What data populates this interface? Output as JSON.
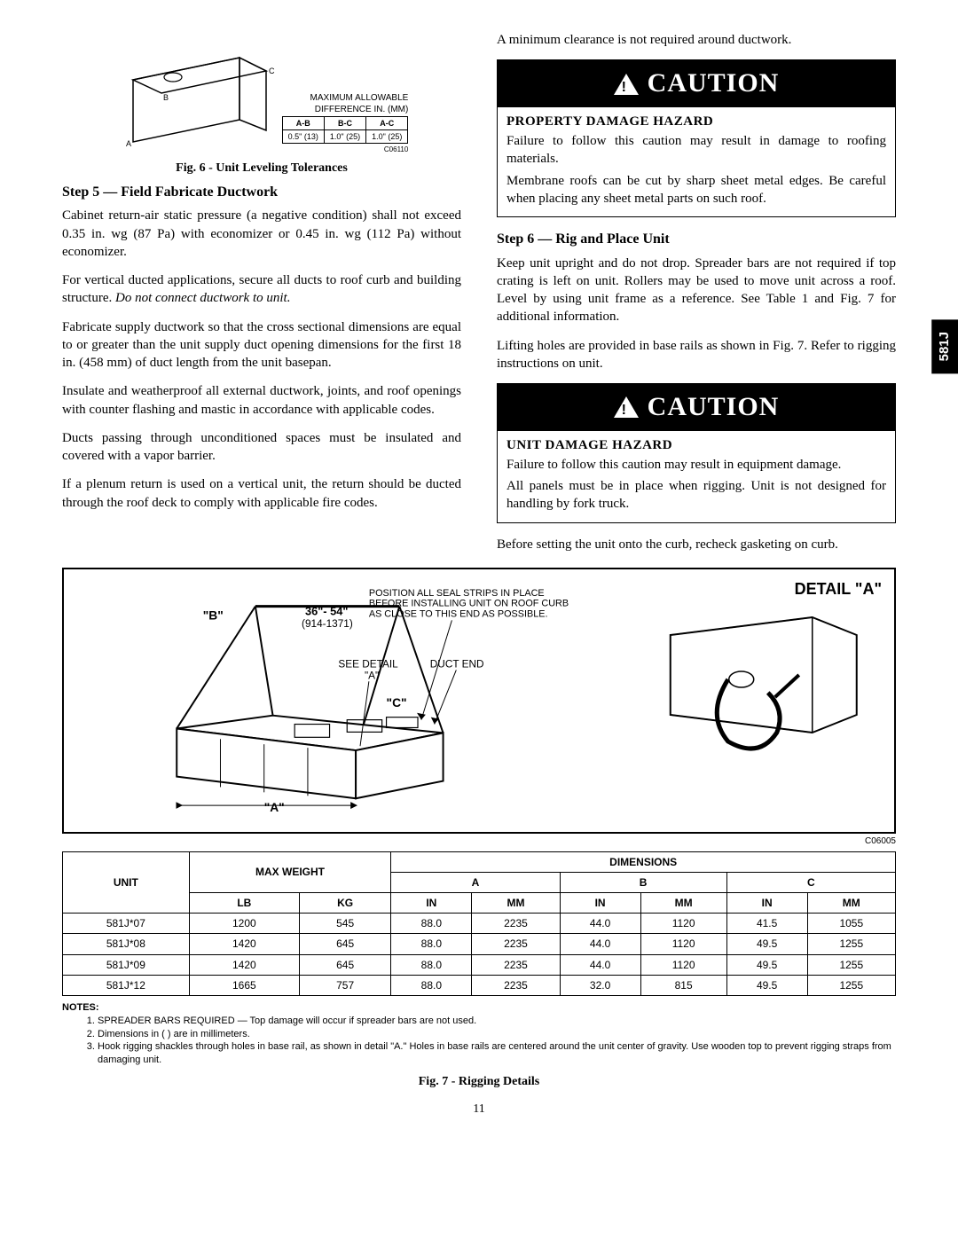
{
  "side_tab": "581J",
  "page_number": "11",
  "fig6": {
    "label_allowable": "MAXIMUM ALLOWABLE",
    "label_difference": "DIFFERENCE IN. (MM)",
    "code": "C06110",
    "caption": "Fig. 6 - Unit Leveling Tolerances",
    "cols": [
      "A-B",
      "B-C",
      "A-C"
    ],
    "vals": [
      "0.5\" (13)",
      "1.0\" (25)",
      "1.0\" (25)"
    ],
    "corner_a": "A",
    "corner_b": "B",
    "corner_c": "C"
  },
  "left": {
    "step5": "Step 5 — Field Fabricate Ductwork",
    "p1": "Cabinet return-air static pressure (a negative condition) shall not exceed 0.35 in. wg (87 Pa) with economizer or 0.45 in. wg (112 Pa) without economizer.",
    "p2a": "For vertical ducted applications, secure all ducts to roof curb and building structure. ",
    "p2b_italic": "Do not connect ductwork to unit.",
    "p3": "Fabricate supply ductwork so that the cross sectional dimensions are equal to or greater than the unit supply duct opening dimensions for the first 18 in. (458 mm) of duct length from the unit basepan.",
    "p4": "Insulate and weatherproof all external ductwork, joints, and roof openings with counter flashing and mastic in accordance with applicable codes.",
    "p5": "Ducts passing through unconditioned spaces must be insulated and covered with a vapor barrier.",
    "p6": "If a plenum return is used on a vertical unit, the return should be ducted through the roof deck to comply with applicable fire codes."
  },
  "right": {
    "p_top": "A minimum clearance is not required around ductwork.",
    "caution1": {
      "label": "CAUTION",
      "heading": "PROPERTY DAMAGE HAZARD",
      "l1": "Failure to follow this caution may result in damage to roofing materials.",
      "l2": "Membrane roofs can be cut by sharp sheet metal edges. Be careful when placing any sheet metal parts on such roof."
    },
    "step6": "Step 6 — Rig and Place Unit",
    "p_rig1": "Keep unit upright and do not drop. Spreader bars are not required if top crating is left on unit. Rollers may be used to move unit across a roof. Level by using unit frame as a reference. See Table 1 and Fig. 7 for additional information.",
    "p_rig2": "Lifting holes are provided in base rails as shown in Fig. 7. Refer to rigging instructions on unit.",
    "caution2": {
      "label": "CAUTION",
      "heading": "UNIT DAMAGE HAZARD",
      "l1": "Failure to follow this caution may result in equipment damage.",
      "l2": "All panels must be in place when rigging. Unit is not designed for handling by fork truck."
    },
    "p_before": "Before setting the unit onto the curb, recheck gasketing on curb."
  },
  "fig7": {
    "caption": "Fig. 7 - Rigging Details",
    "code": "C06005",
    "detail_a_title": "DETAIL \"A\"",
    "label_B": "\"B\"",
    "label_range": "36\"- 54\"",
    "label_range2": "(914-1371)",
    "label_pos1": "POSITION ALL SEAL STRIPS IN PLACE",
    "label_pos2": "BEFORE INSTALLING UNIT ON ROOF CURB",
    "label_pos3": "AS CLOSE TO THIS END AS POSSIBLE.",
    "label_seedetail": "SEE DETAIL",
    "label_seedetail2": "\"A\"",
    "label_ductend": "DUCT END",
    "label_C": "\"C\"",
    "label_A": "\"A\""
  },
  "table": {
    "headers": {
      "unit": "UNIT",
      "maxweight": "MAX WEIGHT",
      "dimensions": "DIMENSIONS",
      "A": "A",
      "B": "B",
      "C": "C",
      "lb": "LB",
      "kg": "KG",
      "in": "IN",
      "mm": "MM"
    },
    "rows": [
      {
        "unit": "581J*07",
        "lb": "1200",
        "kg": "545",
        "a_in": "88.0",
        "a_mm": "2235",
        "b_in": "44.0",
        "b_mm": "1120",
        "c_in": "41.5",
        "c_mm": "1055"
      },
      {
        "unit": "581J*08",
        "lb": "1420",
        "kg": "645",
        "a_in": "88.0",
        "a_mm": "2235",
        "b_in": "44.0",
        "b_mm": "1120",
        "c_in": "49.5",
        "c_mm": "1255"
      },
      {
        "unit": "581J*09",
        "lb": "1420",
        "kg": "645",
        "a_in": "88.0",
        "a_mm": "2235",
        "b_in": "44.0",
        "b_mm": "1120",
        "c_in": "49.5",
        "c_mm": "1255"
      },
      {
        "unit": "581J*12",
        "lb": "1665",
        "kg": "757",
        "a_in": "88.0",
        "a_mm": "2235",
        "b_in": "32.0",
        "b_mm": "815",
        "c_in": "49.5",
        "c_mm": "1255"
      }
    ]
  },
  "notes": {
    "label": "NOTES:",
    "items": [
      "SPREADER BARS REQUIRED — Top damage will occur if spreader bars are not used.",
      "Dimensions in ( ) are in millimeters.",
      "Hook rigging shackles through holes in base rail, as shown in detail \"A.\" Holes in base rails are centered around the unit center of gravity. Use wooden top to prevent rigging straps from damaging unit."
    ]
  }
}
